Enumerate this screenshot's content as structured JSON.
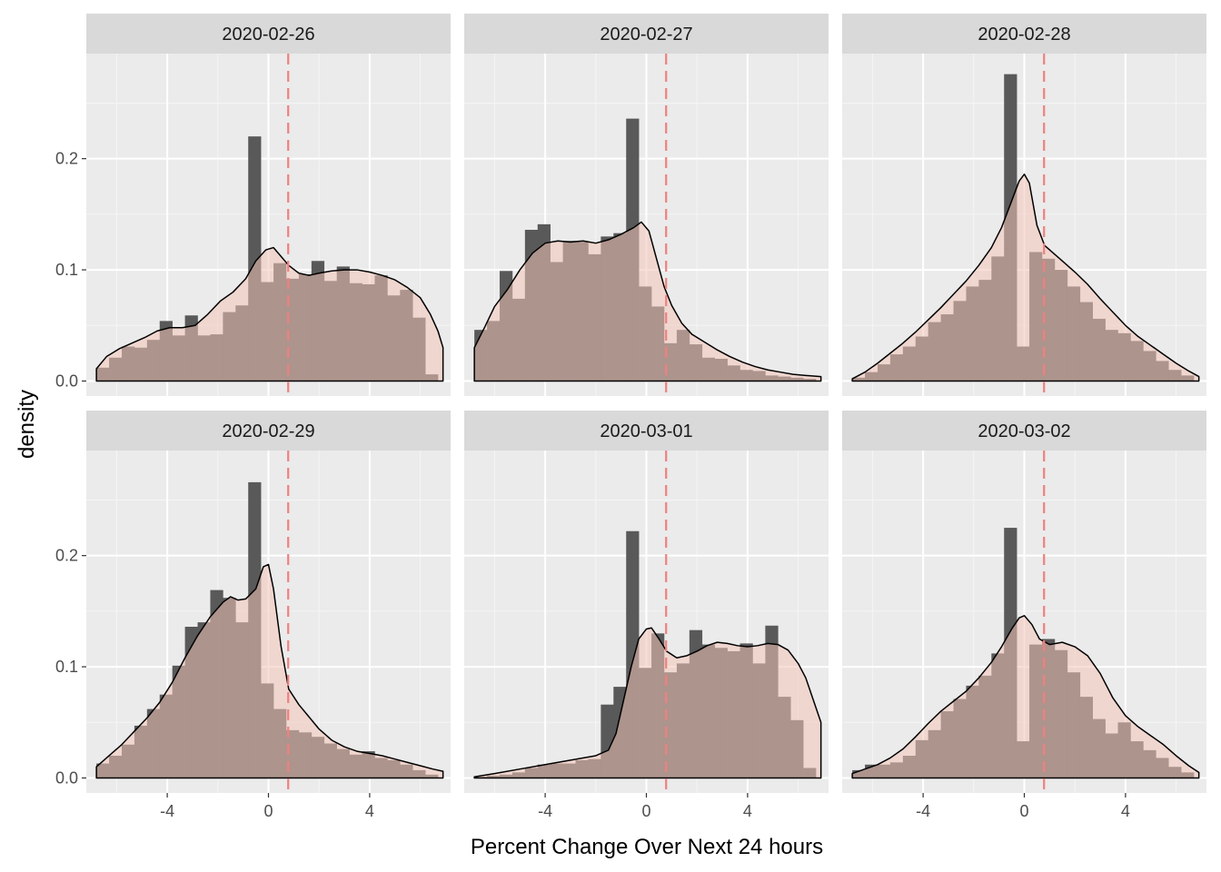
{
  "chart_data": {
    "type": "histogram-density-facets",
    "xlabel": "Percent Change Over Next 24 hours",
    "ylabel": "density",
    "xlim": [
      -7.2,
      7.2
    ],
    "ylim": [
      -0.0135,
      0.2945
    ],
    "x_ticks": [
      -4,
      0,
      4
    ],
    "y_ticks": [
      0.0,
      0.1,
      0.2
    ],
    "y_tick_labels": [
      "0.0",
      "0.1",
      "0.2"
    ],
    "x_tick_labels": [
      "-4",
      "0",
      "4"
    ],
    "bin_edges_start": -6.8,
    "bin_width": 0.5,
    "reference_line_x": 0.78,
    "grid": true,
    "colors": {
      "panel_background": "#ebebeb",
      "strip_background": "#d9d9d9",
      "grid_major": "#ffffff",
      "grid_minor": "#f5f5f5",
      "histogram": "#595959",
      "density_fill": "#f2c4b8",
      "density_fill_opacity": 0.55,
      "density_line": "#000000",
      "reference_line": "#f08080"
    },
    "panels": [
      {
        "label": "2020-02-26",
        "hist": [
          0.012,
          0.021,
          0.031,
          0.03,
          0.037,
          0.054,
          0.041,
          0.059,
          0.041,
          0.042,
          0.062,
          0.068,
          0.22,
          0.089,
          0.106,
          0.092,
          0.096,
          0.108,
          0.09,
          0.103,
          0.088,
          0.087,
          0.095,
          0.077,
          0.082,
          0.057,
          0.006
        ],
        "density": [
          [
            -6.8,
            0.011
          ],
          [
            -6.4,
            0.022
          ],
          [
            -5.9,
            0.029
          ],
          [
            -5.4,
            0.034
          ],
          [
            -4.9,
            0.039
          ],
          [
            -4.4,
            0.045
          ],
          [
            -3.9,
            0.048
          ],
          [
            -3.4,
            0.048
          ],
          [
            -2.9,
            0.05
          ],
          [
            -2.4,
            0.06
          ],
          [
            -1.9,
            0.072
          ],
          [
            -1.4,
            0.08
          ],
          [
            -0.9,
            0.092
          ],
          [
            -0.5,
            0.108
          ],
          [
            -0.1,
            0.118
          ],
          [
            0.2,
            0.12
          ],
          [
            0.5,
            0.112
          ],
          [
            0.8,
            0.104
          ],
          [
            1.2,
            0.097
          ],
          [
            1.6,
            0.095
          ],
          [
            2.0,
            0.097
          ],
          [
            2.5,
            0.099
          ],
          [
            3.0,
            0.1
          ],
          [
            3.5,
            0.1
          ],
          [
            4.0,
            0.098
          ],
          [
            4.5,
            0.095
          ],
          [
            5.0,
            0.091
          ],
          [
            5.5,
            0.084
          ],
          [
            6.0,
            0.075
          ],
          [
            6.4,
            0.06
          ],
          [
            6.7,
            0.045
          ],
          [
            6.9,
            0.03
          ]
        ]
      },
      {
        "label": "2020-02-27",
        "hist": [
          0.046,
          0.054,
          0.099,
          0.074,
          0.136,
          0.141,
          0.107,
          0.126,
          0.125,
          0.114,
          0.13,
          0.133,
          0.236,
          0.085,
          0.067,
          0.034,
          0.046,
          0.033,
          0.021,
          0.02,
          0.014,
          0.01,
          0.009,
          0.005,
          0.004,
          0.003,
          0.002
        ],
        "density": [
          [
            -6.8,
            0.03
          ],
          [
            -6.4,
            0.048
          ],
          [
            -6.0,
            0.067
          ],
          [
            -5.5,
            0.082
          ],
          [
            -5.0,
            0.1
          ],
          [
            -4.5,
            0.115
          ],
          [
            -4.0,
            0.124
          ],
          [
            -3.5,
            0.126
          ],
          [
            -3.0,
            0.125
          ],
          [
            -2.5,
            0.126
          ],
          [
            -2.0,
            0.124
          ],
          [
            -1.5,
            0.127
          ],
          [
            -1.0,
            0.132
          ],
          [
            -0.5,
            0.138
          ],
          [
            -0.2,
            0.143
          ],
          [
            0.1,
            0.135
          ],
          [
            0.4,
            0.11
          ],
          [
            0.7,
            0.085
          ],
          [
            1.0,
            0.068
          ],
          [
            1.4,
            0.052
          ],
          [
            1.8,
            0.042
          ],
          [
            2.3,
            0.035
          ],
          [
            2.8,
            0.028
          ],
          [
            3.3,
            0.022
          ],
          [
            3.8,
            0.017
          ],
          [
            4.3,
            0.013
          ],
          [
            4.8,
            0.01
          ],
          [
            5.3,
            0.008
          ],
          [
            5.8,
            0.006
          ],
          [
            6.3,
            0.005
          ],
          [
            6.9,
            0.004
          ]
        ]
      },
      {
        "label": "2020-02-28",
        "hist": [
          0.003,
          0.008,
          0.015,
          0.024,
          0.031,
          0.04,
          0.053,
          0.06,
          0.072,
          0.085,
          0.091,
          0.112,
          0.276,
          0.031,
          0.116,
          0.11,
          0.1,
          0.085,
          0.071,
          0.056,
          0.046,
          0.043,
          0.036,
          0.027,
          0.018,
          0.01,
          0.005
        ],
        "density": [
          [
            -6.8,
            0.002
          ],
          [
            -6.3,
            0.008
          ],
          [
            -5.8,
            0.016
          ],
          [
            -5.3,
            0.025
          ],
          [
            -4.8,
            0.034
          ],
          [
            -4.3,
            0.044
          ],
          [
            -3.8,
            0.055
          ],
          [
            -3.3,
            0.066
          ],
          [
            -2.8,
            0.078
          ],
          [
            -2.3,
            0.09
          ],
          [
            -1.8,
            0.104
          ],
          [
            -1.3,
            0.12
          ],
          [
            -0.9,
            0.138
          ],
          [
            -0.5,
            0.162
          ],
          [
            -0.2,
            0.18
          ],
          [
            0.0,
            0.186
          ],
          [
            0.2,
            0.178
          ],
          [
            0.5,
            0.14
          ],
          [
            0.8,
            0.122
          ],
          [
            1.2,
            0.114
          ],
          [
            1.6,
            0.106
          ],
          [
            2.0,
            0.098
          ],
          [
            2.5,
            0.087
          ],
          [
            3.0,
            0.074
          ],
          [
            3.5,
            0.062
          ],
          [
            4.0,
            0.05
          ],
          [
            4.5,
            0.04
          ],
          [
            5.0,
            0.032
          ],
          [
            5.5,
            0.024
          ],
          [
            6.0,
            0.016
          ],
          [
            6.5,
            0.009
          ],
          [
            6.9,
            0.004
          ]
        ]
      },
      {
        "label": "2020-02-29",
        "hist": [
          0.013,
          0.02,
          0.03,
          0.047,
          0.062,
          0.075,
          0.101,
          0.136,
          0.14,
          0.169,
          0.162,
          0.14,
          0.266,
          0.085,
          0.062,
          0.043,
          0.041,
          0.037,
          0.031,
          0.026,
          0.021,
          0.024,
          0.018,
          0.016,
          0.012,
          0.007,
          0.003
        ],
        "density": [
          [
            -6.8,
            0.01
          ],
          [
            -6.3,
            0.02
          ],
          [
            -5.8,
            0.03
          ],
          [
            -5.3,
            0.042
          ],
          [
            -4.8,
            0.054
          ],
          [
            -4.3,
            0.068
          ],
          [
            -3.8,
            0.086
          ],
          [
            -3.3,
            0.108
          ],
          [
            -2.8,
            0.128
          ],
          [
            -2.3,
            0.145
          ],
          [
            -1.8,
            0.158
          ],
          [
            -1.5,
            0.163
          ],
          [
            -1.2,
            0.16
          ],
          [
            -0.9,
            0.161
          ],
          [
            -0.5,
            0.17
          ],
          [
            -0.2,
            0.19
          ],
          [
            0.0,
            0.192
          ],
          [
            0.2,
            0.17
          ],
          [
            0.5,
            0.118
          ],
          [
            0.8,
            0.08
          ],
          [
            1.2,
            0.066
          ],
          [
            1.6,
            0.055
          ],
          [
            2.0,
            0.044
          ],
          [
            2.5,
            0.034
          ],
          [
            3.0,
            0.028
          ],
          [
            3.5,
            0.024
          ],
          [
            4.0,
            0.022
          ],
          [
            4.5,
            0.02
          ],
          [
            5.0,
            0.017
          ],
          [
            5.5,
            0.014
          ],
          [
            6.0,
            0.011
          ],
          [
            6.5,
            0.008
          ],
          [
            6.9,
            0.006
          ]
        ]
      },
      {
        "label": "2020-03-01",
        "hist": [
          0.001,
          0.002,
          0.003,
          0.005,
          0.009,
          0.012,
          0.013,
          0.013,
          0.016,
          0.017,
          0.066,
          0.082,
          0.222,
          0.099,
          0.13,
          0.095,
          0.103,
          0.133,
          0.12,
          0.117,
          0.114,
          0.121,
          0.103,
          0.137,
          0.073,
          0.052,
          0.009
        ],
        "density": [
          [
            -6.8,
            0.001
          ],
          [
            -6.0,
            0.004
          ],
          [
            -5.0,
            0.008
          ],
          [
            -4.0,
            0.012
          ],
          [
            -3.0,
            0.016
          ],
          [
            -2.0,
            0.02
          ],
          [
            -1.5,
            0.025
          ],
          [
            -1.2,
            0.04
          ],
          [
            -0.9,
            0.07
          ],
          [
            -0.6,
            0.1
          ],
          [
            -0.3,
            0.125
          ],
          [
            0.0,
            0.134
          ],
          [
            0.2,
            0.135
          ],
          [
            0.5,
            0.125
          ],
          [
            0.8,
            0.114
          ],
          [
            1.2,
            0.108
          ],
          [
            1.6,
            0.11
          ],
          [
            2.0,
            0.114
          ],
          [
            2.4,
            0.119
          ],
          [
            2.8,
            0.122
          ],
          [
            3.2,
            0.121
          ],
          [
            3.6,
            0.119
          ],
          [
            4.0,
            0.118
          ],
          [
            4.4,
            0.119
          ],
          [
            4.8,
            0.121
          ],
          [
            5.2,
            0.12
          ],
          [
            5.6,
            0.115
          ],
          [
            6.0,
            0.103
          ],
          [
            6.3,
            0.09
          ],
          [
            6.6,
            0.07
          ],
          [
            6.9,
            0.05
          ]
        ]
      },
      {
        "label": "2020-03-02",
        "hist": [
          0.007,
          0.012,
          0.012,
          0.014,
          0.02,
          0.034,
          0.043,
          0.06,
          0.071,
          0.083,
          0.092,
          0.112,
          0.225,
          0.033,
          0.12,
          0.125,
          0.115,
          0.095,
          0.073,
          0.053,
          0.04,
          0.05,
          0.033,
          0.025,
          0.018,
          0.01,
          0.005
        ],
        "density": [
          [
            -6.8,
            0.004
          ],
          [
            -6.3,
            0.008
          ],
          [
            -5.8,
            0.012
          ],
          [
            -5.3,
            0.018
          ],
          [
            -4.8,
            0.026
          ],
          [
            -4.3,
            0.037
          ],
          [
            -3.8,
            0.049
          ],
          [
            -3.3,
            0.06
          ],
          [
            -2.8,
            0.069
          ],
          [
            -2.3,
            0.078
          ],
          [
            -1.8,
            0.09
          ],
          [
            -1.3,
            0.104
          ],
          [
            -0.9,
            0.118
          ],
          [
            -0.5,
            0.134
          ],
          [
            -0.2,
            0.144
          ],
          [
            0.0,
            0.146
          ],
          [
            0.3,
            0.138
          ],
          [
            0.6,
            0.125
          ],
          [
            1.0,
            0.12
          ],
          [
            1.5,
            0.122
          ],
          [
            2.0,
            0.118
          ],
          [
            2.5,
            0.11
          ],
          [
            3.0,
            0.094
          ],
          [
            3.5,
            0.072
          ],
          [
            4.0,
            0.056
          ],
          [
            4.5,
            0.046
          ],
          [
            5.0,
            0.038
          ],
          [
            5.5,
            0.03
          ],
          [
            6.0,
            0.02
          ],
          [
            6.5,
            0.011
          ],
          [
            6.9,
            0.005
          ]
        ]
      }
    ]
  }
}
